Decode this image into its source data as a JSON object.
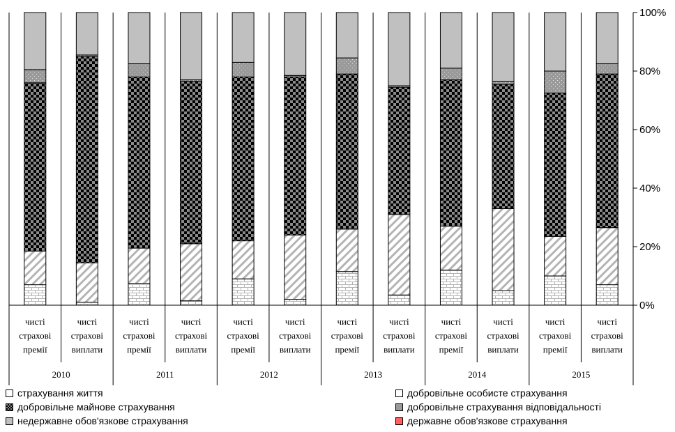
{
  "chart_data": {
    "type": "bar",
    "stacked": true,
    "normalized": true,
    "title": "",
    "xlabel": "",
    "ylabel": "",
    "ylim": [
      0,
      100
    ],
    "yticks": [
      "0%",
      "20%",
      "40%",
      "60%",
      "80%",
      "100%"
    ],
    "groups": [
      {
        "year": "2010",
        "bars": [
          {
            "label_line1": "чисті",
            "label_line2": "страхові",
            "label_line3": "премії",
            "values": [
              7,
              11.5,
              57.5,
              4.5,
              19.5,
              0
            ]
          },
          {
            "label_line1": "чисті",
            "label_line2": "страхові",
            "label_line3": "виплати",
            "values": [
              1,
              13.5,
              70.5,
              0.5,
              14.5,
              0
            ]
          }
        ]
      },
      {
        "year": "2011",
        "bars": [
          {
            "label_line1": "чисті",
            "label_line2": "страхові",
            "label_line3": "премії",
            "values": [
              7.5,
              12,
              58.5,
              4.5,
              17.5,
              0
            ]
          },
          {
            "label_line1": "чисті",
            "label_line2": "страхові",
            "label_line3": "виплати",
            "values": [
              1.5,
              19.5,
              55.5,
              0.5,
              23,
              0
            ]
          }
        ]
      },
      {
        "year": "2012",
        "bars": [
          {
            "label_line1": "чисті",
            "label_line2": "страхові",
            "label_line3": "премії",
            "values": [
              9,
              13,
              56,
              5,
              17,
              0
            ]
          },
          {
            "label_line1": "чисті",
            "label_line2": "страхові",
            "label_line3": "виплати",
            "values": [
              2,
              22,
              54,
              0.5,
              21.5,
              0
            ]
          }
        ]
      },
      {
        "year": "2013",
        "bars": [
          {
            "label_line1": "чисті",
            "label_line2": "страхові",
            "label_line3": "премії",
            "values": [
              11.5,
              14.5,
              53,
              5.5,
              15.5,
              0
            ]
          },
          {
            "label_line1": "чисті",
            "label_line2": "страхові",
            "label_line3": "виплати",
            "values": [
              3.5,
              27.5,
              43.5,
              0.5,
              25,
              0
            ]
          }
        ]
      },
      {
        "year": "2014",
        "bars": [
          {
            "label_line1": "чисті",
            "label_line2": "страхові",
            "label_line3": "премії",
            "values": [
              12,
              15,
              50,
              4,
              19,
              0
            ]
          },
          {
            "label_line1": "чисті",
            "label_line2": "страхові",
            "label_line3": "виплати",
            "values": [
              5,
              28,
              42.5,
              1,
              23.5,
              0
            ]
          }
        ]
      },
      {
        "year": "2015",
        "bars": [
          {
            "label_line1": "чисті",
            "label_line2": "страхові",
            "label_line3": "премії",
            "values": [
              10,
              13.5,
              49,
              7.5,
              20,
              0
            ]
          },
          {
            "label_line1": "чисті",
            "label_line2": "страхові",
            "label_line3": "виплати",
            "values": [
              7,
              19.5,
              52.5,
              3.5,
              17.5,
              0
            ]
          }
        ]
      }
    ],
    "series": [
      {
        "name": "страхування життя",
        "pattern": "brick"
      },
      {
        "name": "добровільне особисте страхування",
        "pattern": "diagonal"
      },
      {
        "name": "добровільне майнове страхування",
        "pattern": "checker"
      },
      {
        "name": "добровільне страхування відповідальності",
        "pattern": "dots"
      },
      {
        "name": "недержавне обов'язкове страхування",
        "pattern": "solid",
        "color": "#c0c0c0"
      },
      {
        "name": "державне обов'язкове страхування",
        "pattern": "solid",
        "color": "#ff6060"
      }
    ],
    "legend_position": "bottom",
    "grid": false
  }
}
